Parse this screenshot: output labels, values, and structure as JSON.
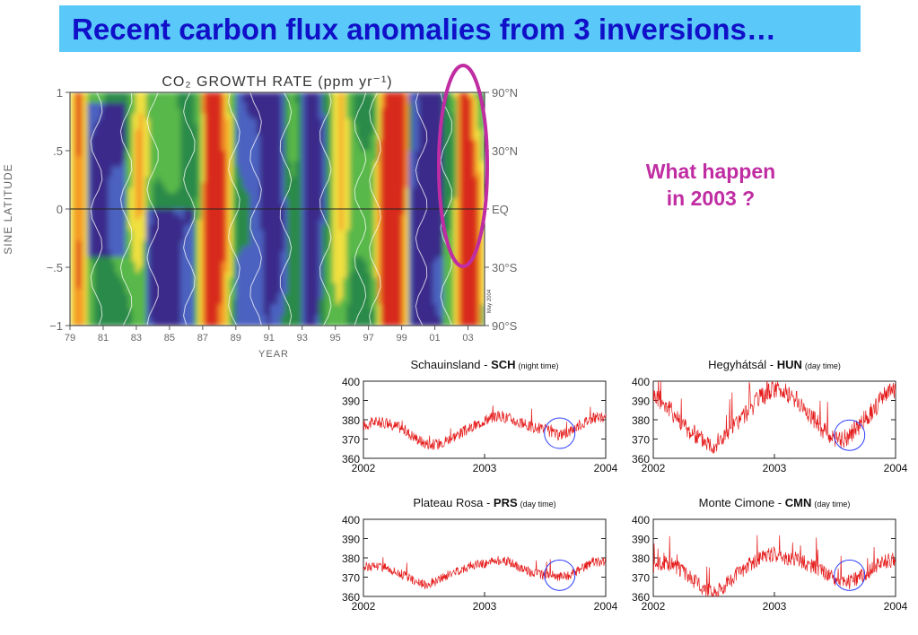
{
  "slide": {
    "title": "Recent carbon flux anomalies from 3 inversions…",
    "callout_line1": "What happen",
    "callout_line2": "in 2003 ?"
  },
  "colors": {
    "title_bg": "#5ac8f8",
    "title_text": "#1010c8",
    "callout_text": "#c02da3",
    "highlight_ellipse": "#c02da3",
    "series_line": "#e51a1a",
    "circle_marker": "#2a3cff"
  },
  "chart_data": [
    {
      "type": "heatmap",
      "title": "CO₂ GROWTH RATE (ppm yr⁻¹)",
      "xlabel": "YEAR",
      "ylabel": "SINE LATITUDE",
      "x_ticks": [
        "79",
        "81",
        "83",
        "85",
        "87",
        "89",
        "91",
        "93",
        "95",
        "97",
        "99",
        "01",
        "03"
      ],
      "y_ticks": [
        "1",
        ".5",
        "0",
        "−.5",
        "−1"
      ],
      "y_ticks_right": [
        "90°N",
        "30°N",
        "EQ",
        "30°S",
        "90°S"
      ],
      "side_note": "May 2004",
      "xlim": [
        1979,
        2004
      ],
      "ylim": [
        -1,
        1
      ],
      "colormap": [
        "#3a2a8a",
        "#4c62c0",
        "#2a8a4a",
        "#58b848",
        "#f0e040",
        "#f59a28",
        "#d82a1a"
      ],
      "highlight": "2002–2004 band circled"
    },
    {
      "type": "line",
      "title_site": "Schauinsland - ",
      "title_code": "SCH",
      "title_note": "(night time)",
      "x_ticks": [
        "2002",
        "2003",
        "2004"
      ],
      "y_ticks": [
        "400",
        "390",
        "380",
        "370",
        "360"
      ],
      "xlim": [
        2002,
        2004
      ],
      "ylim": [
        360,
        400
      ],
      "series": [
        {
          "x": [
            2002.0,
            2002.1,
            2002.2,
            2002.3,
            2002.4,
            2002.5,
            2002.6,
            2002.7,
            2002.8,
            2002.9,
            2003.0,
            2003.1,
            2003.2,
            2003.3,
            2003.4,
            2003.5,
            2003.6,
            2003.7,
            2003.8,
            2003.9,
            2004.0
          ],
          "values": [
            377,
            379,
            378,
            376,
            372,
            368,
            367,
            370,
            373,
            376,
            380,
            382,
            381,
            378,
            376,
            375,
            372,
            374,
            378,
            381,
            381
          ]
        }
      ],
      "circle_marker_at": [
        2003.62,
        373
      ]
    },
    {
      "type": "line",
      "title_site": "Hegyhátsál - ",
      "title_code": "HUN",
      "title_note": "(day time)",
      "x_ticks": [
        "2002",
        "2003",
        "2004"
      ],
      "y_ticks": [
        "400",
        "390",
        "380",
        "370",
        "360"
      ],
      "xlim": [
        2002,
        2004
      ],
      "ylim": [
        360,
        400
      ],
      "series": [
        {
          "x": [
            2002.0,
            2002.1,
            2002.2,
            2002.3,
            2002.4,
            2002.5,
            2002.6,
            2002.7,
            2002.8,
            2002.9,
            2003.0,
            2003.1,
            2003.2,
            2003.3,
            2003.4,
            2003.5,
            2003.6,
            2003.7,
            2003.8,
            2003.9,
            2004.0
          ],
          "values": [
            393,
            388,
            381,
            374,
            370,
            367,
            372,
            379,
            386,
            392,
            396,
            394,
            389,
            382,
            375,
            369,
            371,
            377,
            384,
            392,
            396
          ]
        }
      ],
      "circle_marker_at": [
        2003.62,
        372
      ]
    },
    {
      "type": "line",
      "title_site": "Plateau Rosa - ",
      "title_code": "PRS",
      "title_note": "(day time)",
      "x_ticks": [
        "2002",
        "2003",
        "2004"
      ],
      "y_ticks": [
        "400",
        "390",
        "380",
        "370",
        "360"
      ],
      "xlim": [
        2002,
        2004
      ],
      "ylim": [
        360,
        400
      ],
      "series": [
        {
          "x": [
            2002.0,
            2002.1,
            2002.2,
            2002.3,
            2002.4,
            2002.5,
            2002.6,
            2002.7,
            2002.8,
            2002.9,
            2003.0,
            2003.1,
            2003.2,
            2003.3,
            2003.4,
            2003.5,
            2003.6,
            2003.7,
            2003.8,
            2003.9,
            2004.0
          ],
          "values": [
            375,
            376,
            375,
            372,
            369,
            366,
            368,
            371,
            374,
            376,
            377,
            379,
            378,
            375,
            372,
            371,
            370,
            371,
            374,
            378,
            378
          ]
        }
      ],
      "circle_marker_at": [
        2003.62,
        371
      ]
    },
    {
      "type": "line",
      "title_site": "Monte Cimone - ",
      "title_code": "CMN",
      "title_note": "(day time)",
      "x_ticks": [
        "2002",
        "2003",
        "2004"
      ],
      "y_ticks": [
        "400",
        "390",
        "380",
        "370",
        "360"
      ],
      "xlim": [
        2002,
        2004
      ],
      "ylim": [
        360,
        400
      ],
      "series": [
        {
          "x": [
            2002.0,
            2002.1,
            2002.2,
            2002.3,
            2002.4,
            2002.5,
            2002.6,
            2002.7,
            2002.8,
            2002.9,
            2003.0,
            2003.1,
            2003.2,
            2003.3,
            2003.4,
            2003.5,
            2003.6,
            2003.7,
            2003.8,
            2003.9,
            2004.0
          ],
          "values": [
            376,
            378,
            375,
            370,
            365,
            362,
            366,
            372,
            377,
            380,
            382,
            380,
            379,
            376,
            373,
            369,
            367,
            370,
            374,
            378,
            379
          ]
        }
      ],
      "circle_marker_at": [
        2003.62,
        371
      ]
    }
  ]
}
